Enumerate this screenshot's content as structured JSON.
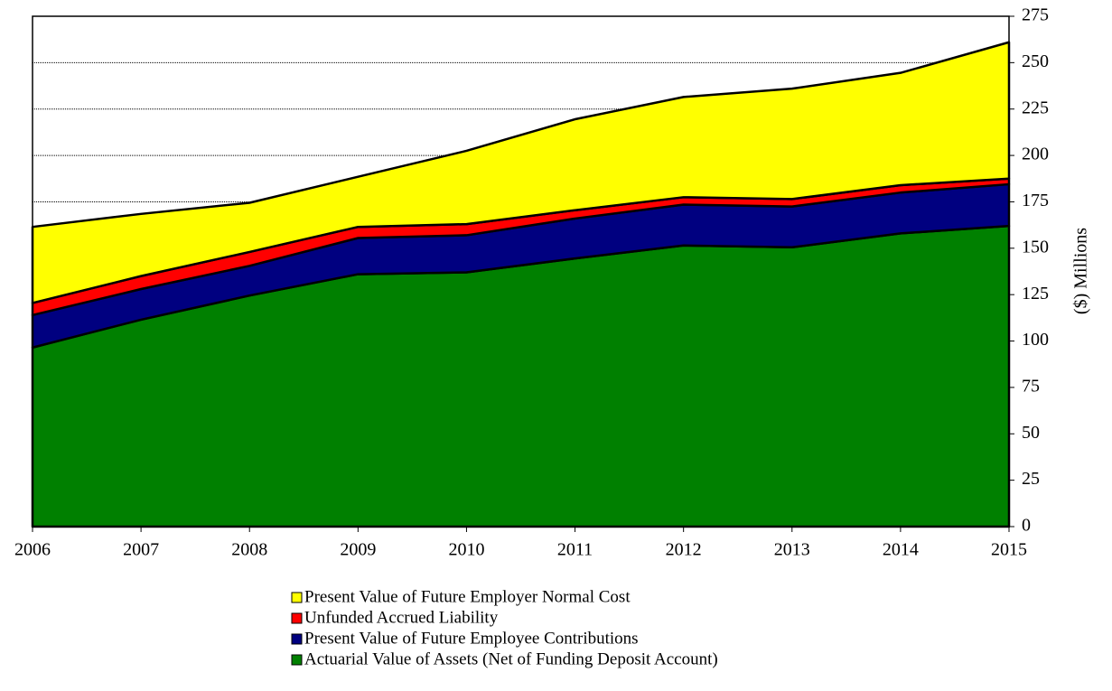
{
  "chart_data": {
    "type": "stacked-area",
    "y_label": "($) Millions",
    "x": [
      2006,
      2007,
      2008,
      2009,
      2010,
      2011,
      2012,
      2013,
      2014,
      2015
    ],
    "xlim": [
      2006,
      2015
    ],
    "xticks": [
      2006,
      2007,
      2008,
      2009,
      2010,
      2011,
      2012,
      2013,
      2014,
      2015
    ],
    "ylim": [
      0,
      275
    ],
    "yticks": [
      0,
      25,
      50,
      75,
      100,
      125,
      150,
      175,
      200,
      225,
      250,
      275
    ],
    "grid": true,
    "series": [
      {
        "name": "Actuarial Value of Assets (Net of Funding Deposit Account)",
        "color": "#008000",
        "values": [
          96.5,
          111.5,
          124.5,
          136,
          137,
          144.5,
          151.5,
          150.5,
          158,
          162
        ]
      },
      {
        "name": "Present Value of Future Employee Contributions",
        "color": "#000080",
        "values": [
          17.5,
          16.5,
          16,
          19.5,
          20,
          21.5,
          22,
          22,
          22,
          22.5
        ]
      },
      {
        "name": "Unfunded Accrued Liability",
        "color": "#ff0000",
        "values": [
          6.5,
          7,
          7.5,
          6,
          6,
          4.5,
          4,
          4,
          4,
          3
        ]
      },
      {
        "name": "Present Value of Future Employer Normal Cost",
        "color": "#ffff00",
        "values": [
          41,
          33.5,
          26.5,
          27,
          39.5,
          49,
          54,
          59.5,
          60.5,
          73.5
        ]
      }
    ]
  }
}
